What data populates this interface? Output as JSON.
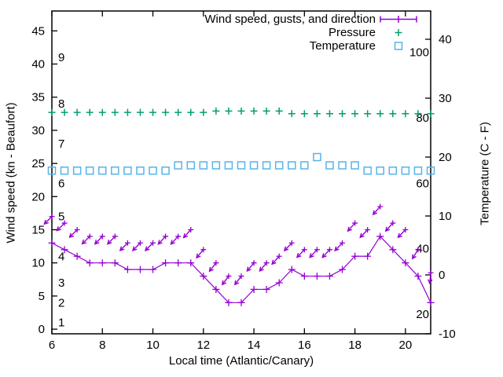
{
  "colors": {
    "wind": "#9400d3",
    "pressure": "#009e73",
    "temperature": "#56b4e9",
    "axis": "#000000",
    "background": "#ffffff"
  },
  "labels": {
    "xlabel": "Local time (Atlantic/Canary)",
    "ylabel_left": "Wind speed (kn - Beaufort)",
    "ylabel_right": "Temperature (C - F)"
  },
  "legend": {
    "items": [
      {
        "series": "wind",
        "label": "Wind speed, gusts, and direction"
      },
      {
        "series": "pressure",
        "label": "Pressure"
      },
      {
        "series": "temperature",
        "label": "Temperature"
      }
    ]
  },
  "chart_data": {
    "type": "line",
    "x_hours": [
      6,
      6.5,
      7,
      7.5,
      8,
      8.5,
      9,
      9.5,
      10,
      10.5,
      11,
      11.5,
      12,
      12.5,
      13,
      13.5,
      14,
      14.5,
      15,
      15.5,
      16,
      16.5,
      17,
      17.5,
      18,
      18.5,
      19,
      19.5,
      20,
      20.5,
      21
    ],
    "series": [
      {
        "name": "wind_speed",
        "legend": "Wind speed, gusts, and direction",
        "axis": "left",
        "units": "kn",
        "marker": "plus",
        "line": true,
        "color_key": "wind",
        "values": [
          13,
          12,
          11,
          10,
          10,
          10,
          9,
          9,
          9,
          10,
          10,
          10,
          8,
          6,
          4,
          4,
          6,
          6,
          7,
          9,
          8,
          8,
          8,
          9,
          11,
          11,
          14,
          12,
          10,
          8,
          4
        ]
      },
      {
        "name": "wind_gusts",
        "axis": "left",
        "units": "kn",
        "marker": "arrow-vector",
        "line": false,
        "color_key": "wind",
        "values": [
          17,
          16,
          15,
          14,
          14,
          14,
          13,
          13,
          13,
          14,
          14,
          15,
          12,
          10,
          8,
          8,
          10,
          10,
          11,
          13,
          12,
          12,
          12,
          13,
          16,
          15,
          18.5,
          16,
          15,
          12,
          8.5
        ],
        "arrow_screen_angle_deg": [
          135,
          135,
          135,
          135,
          134,
          134,
          135,
          135,
          135,
          133,
          133,
          132,
          130,
          128,
          127,
          127,
          130,
          130,
          132,
          134,
          134,
          133,
          133,
          134,
          132,
          134,
          132,
          132,
          134,
          122,
          95
        ]
      },
      {
        "name": "pressure",
        "legend": "Pressure",
        "axis": "none-visible",
        "marker": "plus",
        "line": false,
        "color_key": "pressure",
        "display_values_left_axis_units": [
          32.7,
          32.7,
          32.7,
          32.7,
          32.7,
          32.7,
          32.7,
          32.7,
          32.7,
          32.7,
          32.7,
          32.7,
          32.7,
          32.9,
          32.9,
          32.9,
          32.9,
          32.9,
          32.9,
          32.5,
          32.5,
          32.5,
          32.5,
          32.5,
          32.5,
          32.5,
          32.5,
          32.5,
          32.5,
          32.5,
          32.5
        ]
      },
      {
        "name": "temperature",
        "legend": "Temperature",
        "axis": "right",
        "units": "C",
        "marker": "open-square",
        "line": false,
        "color_key": "temperature",
        "values": [
          17.7,
          17.7,
          17.7,
          17.7,
          17.7,
          17.7,
          17.7,
          17.7,
          17.7,
          17.7,
          18.6,
          18.6,
          18.6,
          18.6,
          18.6,
          18.6,
          18.6,
          18.6,
          18.6,
          18.6,
          18.6,
          20,
          18.6,
          18.6,
          18.6,
          17.7,
          17.7,
          17.7,
          17.7,
          17.7,
          17.7
        ]
      }
    ],
    "axes": {
      "x": {
        "min": 6,
        "max": 21,
        "ticks": [
          6,
          8,
          10,
          12,
          14,
          16,
          18,
          20
        ]
      },
      "y_left": {
        "min": -0.7,
        "max": 48,
        "ticks": [
          0,
          5,
          10,
          15,
          20,
          25,
          30,
          35,
          40,
          45
        ]
      },
      "y_right": {
        "min": -10,
        "max": 44.8,
        "ticks": [
          -10,
          0,
          10,
          20,
          30,
          40
        ]
      },
      "beaufort_inner_labels": [
        {
          "beaufort": "1",
          "kn": 1
        },
        {
          "beaufort": "2",
          "kn": 4
        },
        {
          "beaufort": "3",
          "kn": 7
        },
        {
          "beaufort": "4",
          "kn": 11
        },
        {
          "beaufort": "5",
          "kn": 17
        },
        {
          "beaufort": "6",
          "kn": 22
        },
        {
          "beaufort": "7",
          "kn": 28
        },
        {
          "beaufort": "8",
          "kn": 34
        },
        {
          "beaufort": "9",
          "kn": 41
        }
      ],
      "fahrenheit_inner_labels": [
        {
          "f": 20
        },
        {
          "f": 40
        },
        {
          "f": 60
        },
        {
          "f": 80
        },
        {
          "f": 100
        }
      ]
    }
  }
}
